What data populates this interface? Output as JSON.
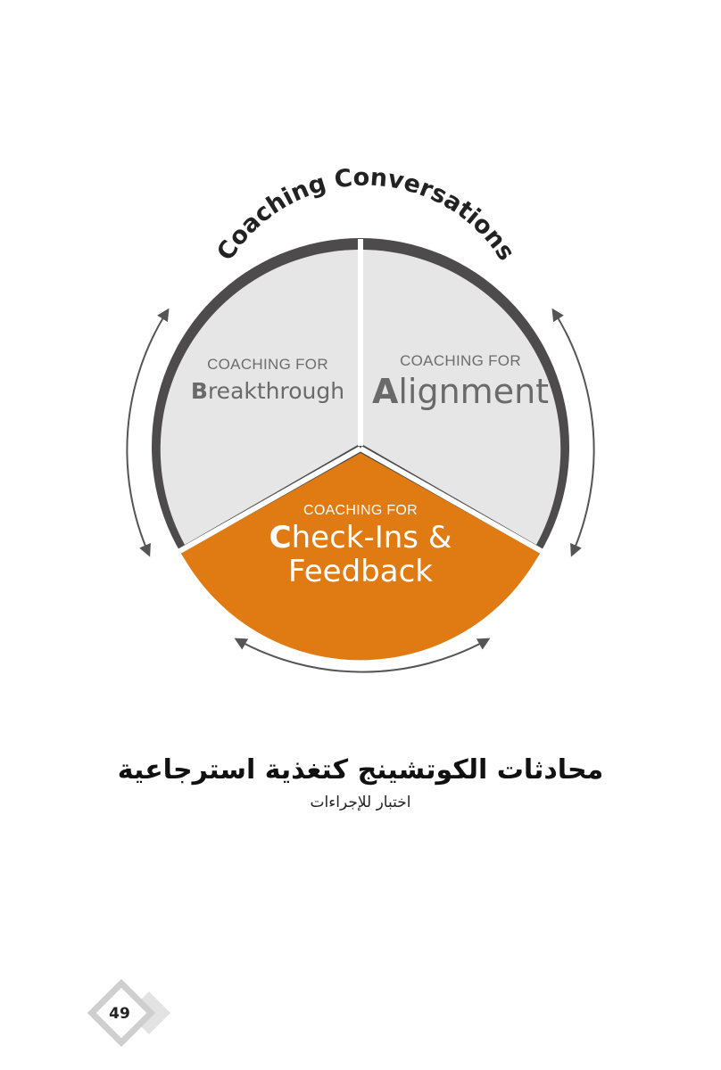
{
  "diagram": {
    "arc_title": "Coaching Conversations",
    "segments": {
      "breakthrough": {
        "small": "COACHING FOR",
        "initial": "B",
        "rest": "reakthrough"
      },
      "alignment": {
        "small": "COACHING FOR",
        "initial": "A",
        "rest": "lignment"
      },
      "checkins": {
        "small": "COACHING FOR",
        "initial": "C",
        "line1_rest": "heck-Ins &",
        "line2": "Feedback"
      }
    },
    "colors": {
      "segment_grey": "#e6e6e6",
      "ring_dark": "#4d4b4c",
      "accent_orange": "#e07a12",
      "orange_dark": "#8a4b0c",
      "arrow_grey": "#555555"
    }
  },
  "caption": {
    "title": "محادثات الكوتشينج كتغذية استرجاعية",
    "subtitle": "اختبار للإجراءات"
  },
  "page": {
    "number": "49"
  }
}
